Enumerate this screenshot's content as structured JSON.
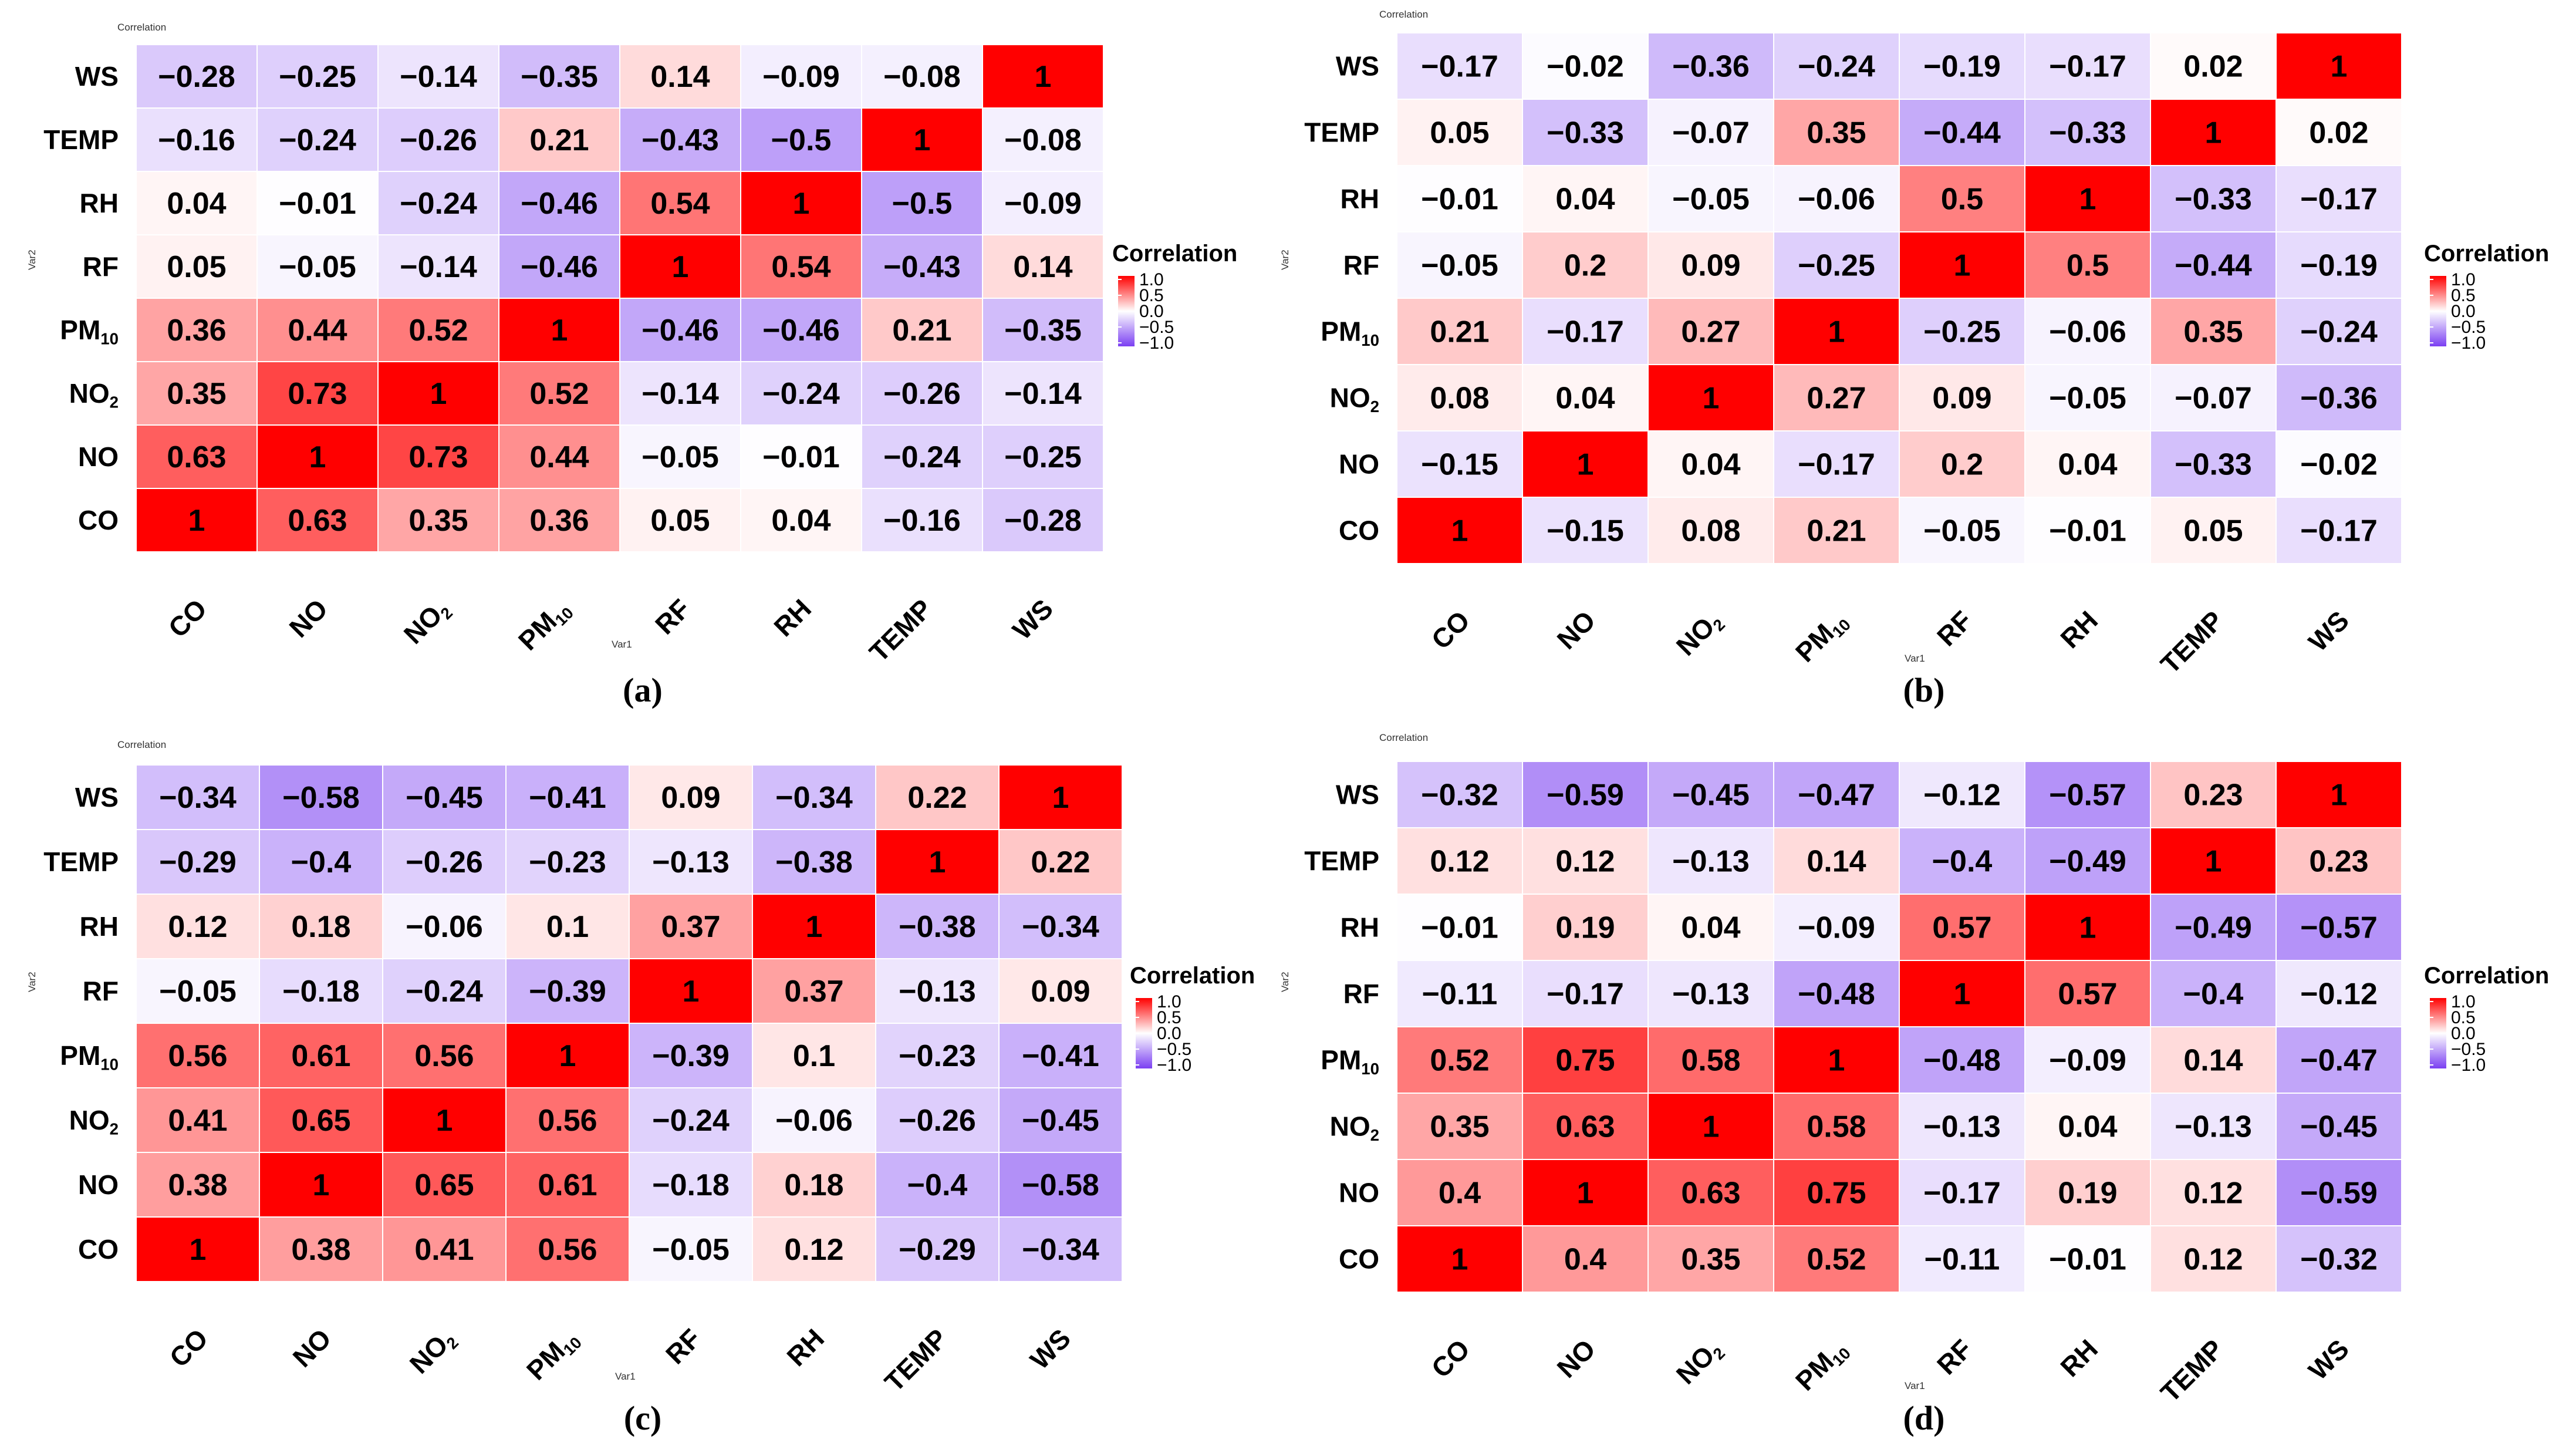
{
  "figure": {
    "panel_labels": [
      "(a)",
      "(b)",
      "(c)",
      "(d)"
    ]
  },
  "colors": {
    "low": "#7b3ff2",
    "mid": "#ffffff",
    "high": "#ff0000"
  },
  "chart_data": [
    {
      "type": "heatmap",
      "panel": "(a)",
      "title": "Correlation",
      "xlabel": "Var1",
      "ylabel": "Var2",
      "x_categories": [
        "CO",
        "NO",
        "NO2",
        "PM10",
        "RF",
        "RH",
        "TEMP",
        "WS"
      ],
      "y_categories_top_to_bottom": [
        "WS",
        "TEMP",
        "RH",
        "RF",
        "PM10",
        "NO2",
        "NO",
        "CO"
      ],
      "values": [
        [
          "−0.28",
          "−0.25",
          "−0.14",
          "−0.35",
          "0.14",
          "−0.09",
          "−0.08",
          "1"
        ],
        [
          "−0.16",
          "−0.24",
          "−0.26",
          "0.21",
          "−0.43",
          "−0.5",
          "1",
          "−0.08"
        ],
        [
          "0.04",
          "−0.01",
          "−0.24",
          "−0.46",
          "0.54",
          "1",
          "−0.5",
          "−0.09"
        ],
        [
          "0.05",
          "−0.05",
          "−0.14",
          "−0.46",
          "1",
          "0.54",
          "−0.43",
          "0.14"
        ],
        [
          "0.36",
          "0.44",
          "0.52",
          "1",
          "−0.46",
          "−0.46",
          "0.21",
          "−0.35"
        ],
        [
          "0.35",
          "0.73",
          "1",
          "0.52",
          "−0.14",
          "−0.24",
          "−0.26",
          "−0.14"
        ],
        [
          "0.63",
          "1",
          "0.73",
          "0.44",
          "−0.05",
          "−0.01",
          "−0.24",
          "−0.25"
        ],
        [
          "1",
          "0.63",
          "0.35",
          "0.36",
          "0.05",
          "0.04",
          "−0.16",
          "−0.28"
        ]
      ],
      "legend": {
        "title": "Correlation",
        "ticks": [
          "1.0",
          "0.5",
          "0.0",
          "−0.5",
          "−1.0"
        ],
        "range": [
          -1,
          1
        ]
      }
    },
    {
      "type": "heatmap",
      "panel": "(b)",
      "title": "Correlation",
      "xlabel": "Var1",
      "ylabel": "Var2",
      "x_categories": [
        "CO",
        "NO",
        "NO2",
        "PM10",
        "RF",
        "RH",
        "TEMP",
        "WS"
      ],
      "y_categories_top_to_bottom": [
        "WS",
        "TEMP",
        "RH",
        "RF",
        "PM10",
        "NO2",
        "NO",
        "CO"
      ],
      "values": [
        [
          "−0.17",
          "−0.02",
          "−0.36",
          "−0.24",
          "−0.19",
          "−0.17",
          "0.02",
          "1"
        ],
        [
          "0.05",
          "−0.33",
          "−0.07",
          "0.35",
          "−0.44",
          "−0.33",
          "1",
          "0.02"
        ],
        [
          "−0.01",
          "0.04",
          "−0.05",
          "−0.06",
          "0.5",
          "1",
          "−0.33",
          "−0.17"
        ],
        [
          "−0.05",
          "0.2",
          "0.09",
          "−0.25",
          "1",
          "0.5",
          "−0.44",
          "−0.19"
        ],
        [
          "0.21",
          "−0.17",
          "0.27",
          "1",
          "−0.25",
          "−0.06",
          "0.35",
          "−0.24"
        ],
        [
          "0.08",
          "0.04",
          "1",
          "0.27",
          "0.09",
          "−0.05",
          "−0.07",
          "−0.36"
        ],
        [
          "−0.15",
          "1",
          "0.04",
          "−0.17",
          "0.2",
          "0.04",
          "−0.33",
          "−0.02"
        ],
        [
          "1",
          "−0.15",
          "0.08",
          "0.21",
          "−0.05",
          "−0.01",
          "0.05",
          "−0.17"
        ]
      ],
      "legend": {
        "title": "Correlation",
        "ticks": [
          "1.0",
          "0.5",
          "0.0",
          "−0.5",
          "−1.0"
        ],
        "range": [
          -1,
          1
        ]
      }
    },
    {
      "type": "heatmap",
      "panel": "(c)",
      "title": "Correlation",
      "xlabel": "Var1",
      "ylabel": "Var2",
      "x_categories": [
        "CO",
        "NO",
        "NO2",
        "PM10",
        "RF",
        "RH",
        "TEMP",
        "WS"
      ],
      "y_categories_top_to_bottom": [
        "WS",
        "TEMP",
        "RH",
        "RF",
        "PM10",
        "NO2",
        "NO",
        "CO"
      ],
      "values": [
        [
          "−0.34",
          "−0.58",
          "−0.45",
          "−0.41",
          "0.09",
          "−0.34",
          "0.22",
          "1"
        ],
        [
          "−0.29",
          "−0.4",
          "−0.26",
          "−0.23",
          "−0.13",
          "−0.38",
          "1",
          "0.22"
        ],
        [
          "0.12",
          "0.18",
          "−0.06",
          "0.1",
          "0.37",
          "1",
          "−0.38",
          "−0.34"
        ],
        [
          "−0.05",
          "−0.18",
          "−0.24",
          "−0.39",
          "1",
          "0.37",
          "−0.13",
          "0.09"
        ],
        [
          "0.56",
          "0.61",
          "0.56",
          "1",
          "−0.39",
          "0.1",
          "−0.23",
          "−0.41"
        ],
        [
          "0.41",
          "0.65",
          "1",
          "0.56",
          "−0.24",
          "−0.06",
          "−0.26",
          "−0.45"
        ],
        [
          "0.38",
          "1",
          "0.65",
          "0.61",
          "−0.18",
          "0.18",
          "−0.4",
          "−0.58"
        ],
        [
          "1",
          "0.38",
          "0.41",
          "0.56",
          "−0.05",
          "0.12",
          "−0.29",
          "−0.34"
        ]
      ],
      "legend": {
        "title": "Correlation",
        "ticks": [
          "1.0",
          "0.5",
          "0.0",
          "−0.5",
          "−1.0"
        ],
        "range": [
          -1,
          1
        ]
      }
    },
    {
      "type": "heatmap",
      "panel": "(d)",
      "title": "Correlation",
      "xlabel": "Var1",
      "ylabel": "Var2",
      "x_categories": [
        "CO",
        "NO",
        "NO2",
        "PM10",
        "RF",
        "RH",
        "TEMP",
        "WS"
      ],
      "y_categories_top_to_bottom": [
        "WS",
        "TEMP",
        "RH",
        "RF",
        "PM10",
        "NO2",
        "NO",
        "CO"
      ],
      "values": [
        [
          "−0.32",
          "−0.59",
          "−0.45",
          "−0.47",
          "−0.12",
          "−0.57",
          "0.23",
          "1"
        ],
        [
          "0.12",
          "0.12",
          "−0.13",
          "0.14",
          "−0.4",
          "−0.49",
          "1",
          "0.23"
        ],
        [
          "−0.01",
          "0.19",
          "0.04",
          "−0.09",
          "0.57",
          "1",
          "−0.49",
          "−0.57"
        ],
        [
          "−0.11",
          "−0.17",
          "−0.13",
          "−0.48",
          "1",
          "0.57",
          "−0.4",
          "−0.12"
        ],
        [
          "0.52",
          "0.75",
          "0.58",
          "1",
          "−0.48",
          "−0.09",
          "0.14",
          "−0.47"
        ],
        [
          "0.35",
          "0.63",
          "1",
          "0.58",
          "−0.13",
          "0.04",
          "−0.13",
          "−0.45"
        ],
        [
          "0.4",
          "1",
          "0.63",
          "0.75",
          "−0.17",
          "0.19",
          "0.12",
          "−0.59"
        ],
        [
          "1",
          "0.4",
          "0.35",
          "0.52",
          "−0.11",
          "−0.01",
          "0.12",
          "−0.32"
        ]
      ],
      "legend": {
        "title": "Correlation",
        "ticks": [
          "1.0",
          "0.5",
          "0.0",
          "−0.5",
          "−1.0"
        ],
        "range": [
          -1,
          1
        ]
      }
    }
  ]
}
